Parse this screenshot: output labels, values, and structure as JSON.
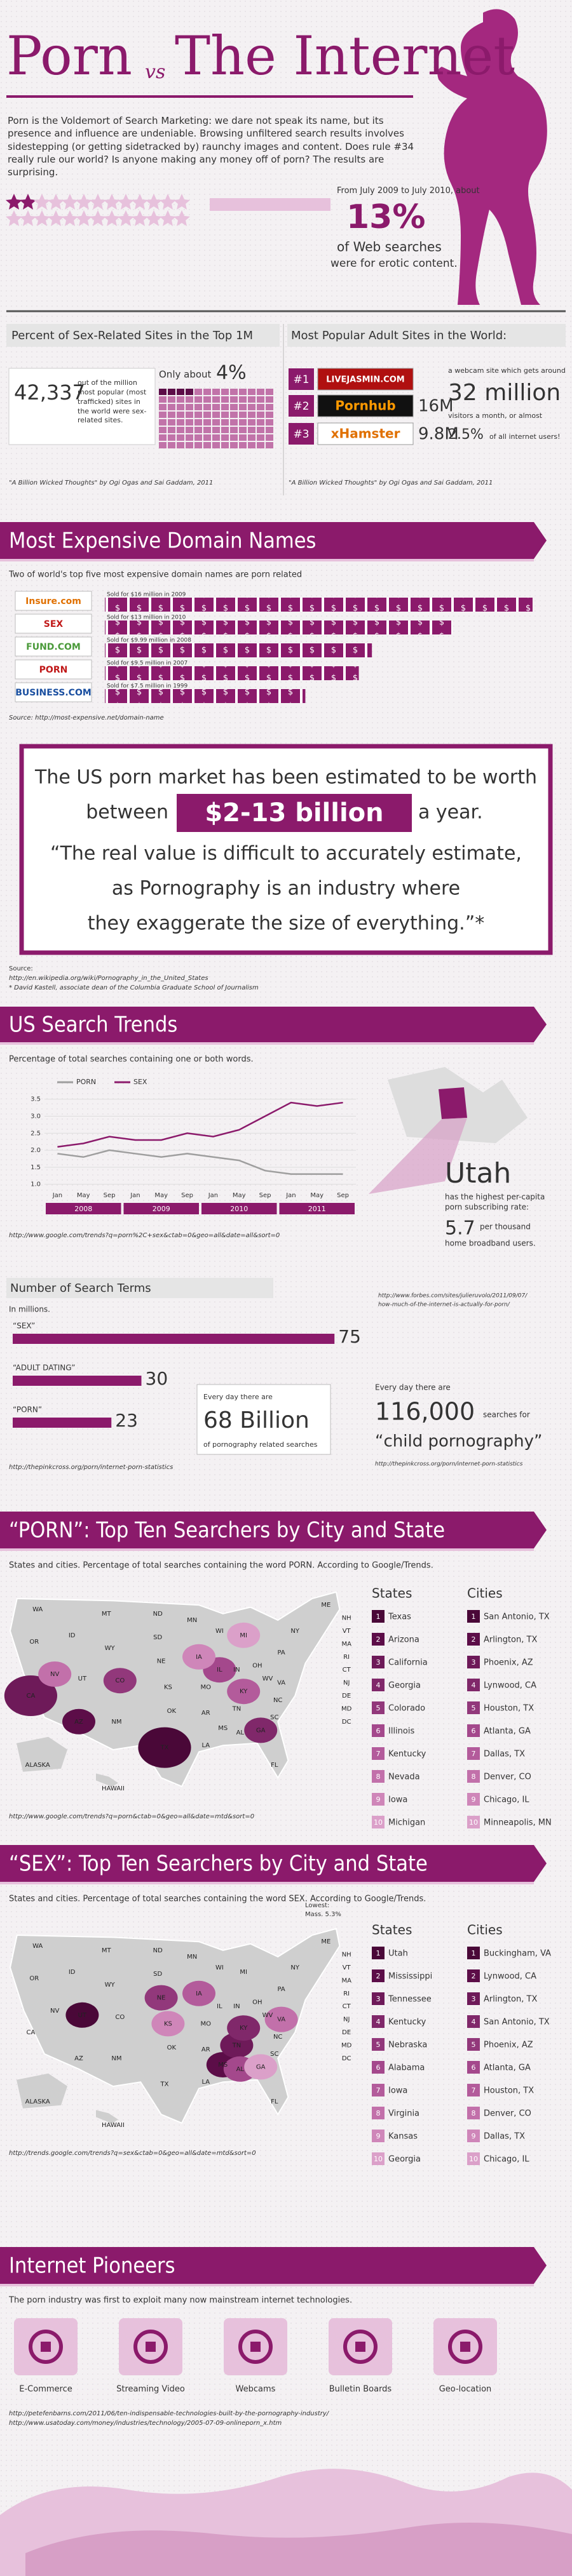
{
  "header": {
    "title_left": "Porn",
    "title_vs": "vs",
    "title_right": "The Internet"
  },
  "intro": {
    "text": "Porn is the Voldemort of Search Marketing: we dare not speak its name, but its presence and influence are undeniable. Browsing unfiltered search results involves sidestepping (or getting sidetracked by) raunchy images and content. Does rule #34 really rule our world? Is anyone making any money off of porn? The results are surprising.",
    "stat_period": "From July 2009 to July 2010, about",
    "stat_value": "13%",
    "stat_caption_1": "of Web searches",
    "stat_caption_2": "were for erotic content."
  },
  "top1m": {
    "heading": "Percent of Sex-Related Sites in the Top 1M",
    "count": "42,337",
    "count_caption": "out of the million most popular (most trafficked) sites in the world were sex-related sites.",
    "share_prefix": "Only about",
    "share": "4%",
    "source": "\"A Billion Wicked Thoughts\" by Ogi Ogas and Sai Gaddam, 2011"
  },
  "adult_sites": {
    "heading": "Most Popular Adult Sites in the World:",
    "sites": [
      {
        "rank": "#1",
        "name": "LIVEJASMIN.COM"
      },
      {
        "rank": "#2",
        "name": "Pornhub",
        "visitors": "16M"
      },
      {
        "rank": "#3",
        "name": "xHamster",
        "visitors": "9.8M"
      }
    ],
    "note_1": "a webcam site which gets around",
    "big": "32 million",
    "note_2": "visitors a month, or almost",
    "share": "2.5%",
    "note_3": "of all internet users!",
    "source": "\"A Billion Wicked Thoughts\" by Ogi Ogas and Sai Gaddam, 2011"
  },
  "domains": {
    "heading": "Most Expensive Domain Names",
    "subtitle": "Two of world's top five most expensive domain names are porn related",
    "sale_notes": [
      "Sold for $16 million in 2009",
      "Sold for $13 million in 2010",
      "Sold for $9.99 million in 2008",
      "Sold for $9.5 million in 2007",
      "Sold for $7.5 million in 1999"
    ],
    "source": "Source: http://most-expensive.net/domain-name"
  },
  "market": {
    "line_1": "The US porn market has been estimated to be worth",
    "line_2a": "between",
    "amount": "$2-13 billion",
    "line_2b": "a year.",
    "quote_1": "“The real value is difficult to accurately estimate,",
    "quote_2": "as Pornography is an industry where",
    "quote_3": "they exaggerate the size of everything.”*",
    "source_label": "Source:",
    "source_url": "http://en.wikipedia.org/wiki/Pornography_in_the_United_States",
    "source_note": "* David Kastell, associate dean of the Columbia Graduate School of Journalism"
  },
  "trends": {
    "heading": "US Search Trends",
    "subtitle": "Percentage of total searches containing one or both words.",
    "source": "http://www.google.com/trends?q=porn%2C+sex&ctab=0&geo=all&date=all&sort=0",
    "utah": {
      "name": "Utah",
      "text_1": "has the highest per-capita",
      "text_2": "porn subscribing rate:",
      "rate": "5.7",
      "text_3": "per thousand",
      "text_4": "home broadband users.",
      "source_1": "http://www.forbes.com/sites/julieruvolo/2011/09/07/",
      "source_2": "how-much-of-the-internet-is-actually-for-porn/"
    }
  },
  "search_terms": {
    "heading": "Number of Search Terms",
    "unit": "In millions.",
    "source": "http://thepinkcross.org/porn/internet-porn-statistics",
    "daily": {
      "prefix": "Every day there are",
      "value": "68 Billion",
      "suffix": "of pornography related searches"
    },
    "child": {
      "prefix": "Every day there are",
      "value": "116,000",
      "suffix": "searches for",
      "term": "“child pornography”",
      "source": "http://thepinkcross.org/porn/internet-porn-statistics"
    }
  },
  "porn_top10": {
    "heading": "“PORN”: Top Ten Searchers by City and State",
    "subtitle": "States and cities. Percentage of total searches containing the word PORN. According to Google/Trends.",
    "states_heading": "States",
    "cities_heading": "Cities",
    "states": [
      {
        "rank": 1,
        "name": "Texas"
      },
      {
        "rank": 2,
        "name": "Arizona"
      },
      {
        "rank": 3,
        "name": "California"
      },
      {
        "rank": 4,
        "name": "Georgia"
      },
      {
        "rank": 5,
        "name": "Colorado"
      },
      {
        "rank": 6,
        "name": "Illinois"
      },
      {
        "rank": 7,
        "name": "Kentucky"
      },
      {
        "rank": 8,
        "name": "Nevada"
      },
      {
        "rank": 9,
        "name": "Iowa"
      },
      {
        "rank": 10,
        "name": "Michigan"
      }
    ],
    "cities": [
      {
        "rank": 1,
        "name": "San Antonio, TX"
      },
      {
        "rank": 2,
        "name": "Arlington, TX"
      },
      {
        "rank": 3,
        "name": "Phoenix, AZ"
      },
      {
        "rank": 4,
        "name": "Lynwood, CA"
      },
      {
        "rank": 5,
        "name": "Houston, TX"
      },
      {
        "rank": 6,
        "name": "Atlanta, GA"
      },
      {
        "rank": 7,
        "name": "Dallas, TX"
      },
      {
        "rank": 8,
        "name": "Denver, CO"
      },
      {
        "rank": 9,
        "name": "Chicago, IL"
      },
      {
        "rank": 10,
        "name": "Minneapolis, MN"
      }
    ],
    "map_labels": [
      "WA",
      "OR",
      "CA",
      "NV",
      "ID",
      "MT",
      "WY",
      "UT",
      "AZ",
      "CO",
      "NM",
      "ND",
      "SD",
      "NE",
      "KS",
      "OK",
      "TX",
      "MN",
      "IA",
      "MO",
      "AR",
      "LA",
      "WI",
      "IL",
      "MS",
      "MI",
      "IN",
      "KY",
      "TN",
      "AL",
      "OH",
      "GA",
      "FL",
      "SC",
      "NC",
      "VA",
      "WV",
      "PA",
      "NY",
      "ME",
      "NH",
      "VT",
      "MA",
      "RI",
      "CT",
      "NJ",
      "DE",
      "MD",
      "DC",
      "ALASKA",
      "HAWAII"
    ],
    "source": "http://www.google.com/trends?q=porn&ctab=0&geo=all&date=mtd&sort=0"
  },
  "sex_top10": {
    "heading": "“SEX”: Top Ten Searchers by City and State",
    "subtitle": "States and cities. Percentage of total searches containing the word SEX. According to Google/Trends.",
    "states_heading": "States",
    "cities_heading": "Cities",
    "lowest_label": "Lowest:",
    "lowest_value": "Mass. 5.3%",
    "states": [
      {
        "rank": 1,
        "name": "Utah"
      },
      {
        "rank": 2,
        "name": "Mississippi"
      },
      {
        "rank": 3,
        "name": "Tennessee"
      },
      {
        "rank": 4,
        "name": "Kentucky"
      },
      {
        "rank": 5,
        "name": "Nebraska"
      },
      {
        "rank": 6,
        "name": "Alabama"
      },
      {
        "rank": 7,
        "name": "Iowa"
      },
      {
        "rank": 8,
        "name": "Virginia"
      },
      {
        "rank": 9,
        "name": "Kansas"
      },
      {
        "rank": 10,
        "name": "Georgia"
      }
    ],
    "cities": [
      {
        "rank": 1,
        "name": "Buckingham, VA"
      },
      {
        "rank": 2,
        "name": "Lynwood, CA"
      },
      {
        "rank": 3,
        "name": "Arlington, TX"
      },
      {
        "rank": 4,
        "name": "San Antonio, TX"
      },
      {
        "rank": 5,
        "name": "Phoenix, AZ"
      },
      {
        "rank": 6,
        "name": "Atlanta, GA"
      },
      {
        "rank": 7,
        "name": "Houston, TX"
      },
      {
        "rank": 8,
        "name": "Denver, CO"
      },
      {
        "rank": 9,
        "name": "Dallas, TX"
      },
      {
        "rank": 10,
        "name": "Chicago, IL"
      }
    ],
    "map_labels": [
      "WA",
      "OR",
      "CA",
      "NV",
      "ID",
      "MT",
      "WY",
      "UT",
      "AZ",
      "CO",
      "NM",
      "ND",
      "SD",
      "NE",
      "KS",
      "OK",
      "TX",
      "MN",
      "IA",
      "MO",
      "AR",
      "LA",
      "WI",
      "IL",
      "MS",
      "MI",
      "IN",
      "KY",
      "TN",
      "AL",
      "OH",
      "GA",
      "FL",
      "SC",
      "NC",
      "VA",
      "WV",
      "PA",
      "NY",
      "ME",
      "NH",
      "VT",
      "MA",
      "RI",
      "CT",
      "NJ",
      "DE",
      "MD",
      "DC",
      "ALASKA",
      "HAWAII"
    ],
    "source": "http://trends.google.com/trends?q=sex&ctab=0&geo=all&date=mtd&sort=0"
  },
  "pioneers": {
    "heading": "Internet Pioneers",
    "subtitle": "The porn industry was first to exploit many now mainstream internet technologies.",
    "items": [
      "E-Commerce",
      "Streaming Video",
      "Webcams",
      "Bulletin Boards",
      "Geo-location"
    ],
    "sources": [
      "http://petefenbarns.com/2011/06/ten-indispensable-technologies-built-by-the-pornography-industry/",
      "http://www.usatoday.com/money/industries/technology/2005-07-09-onlineporn_x.htm"
    ]
  },
  "chart_data": [
    {
      "type": "line",
      "categories": [
        "Jan",
        "May",
        "Sep",
        "Jan",
        "May",
        "Sep",
        "Jan",
        "May",
        "Sep",
        "Jan",
        "May",
        "Sep"
      ],
      "x_groups": [
        "2008",
        "2009",
        "2010",
        "2011"
      ],
      "series": [
        {
          "name": "PORN",
          "color": "#9e9e9e",
          "values": [
            1.9,
            1.8,
            2.0,
            1.9,
            1.8,
            1.9,
            1.8,
            1.7,
            1.4,
            1.3,
            1.3,
            1.3
          ]
        },
        {
          "name": "SEX",
          "color": "#8b1a6b",
          "values": [
            2.1,
            2.2,
            2.4,
            2.3,
            2.3,
            2.5,
            2.4,
            2.6,
            3.0,
            3.4,
            3.3,
            3.4
          ]
        }
      ],
      "ylim": [
        0.9,
        3.7
      ],
      "yticks": [
        {
          "value": 1,
          "label": "1.0"
        },
        1.5,
        {
          "value": 2,
          "label": "2.0"
        },
        2.5,
        {
          "value": 3,
          "label": "3.0"
        },
        3.5
      ],
      "grid": true
    },
    {
      "type": "hbar",
      "categories": [
        "“SEX”",
        "“ADULT DATING”",
        "“PORN”"
      ],
      "values": [
        75,
        30,
        23
      ],
      "color": "#8b1a6b",
      "xlim": [
        0,
        80
      ]
    },
    {
      "type": "dollar-bar",
      "categories": [
        "Insure.com",
        "SEX",
        "FUND.COM",
        "PORN",
        "BUSINESS.COM"
      ],
      "values": [
        16,
        13,
        9.99,
        9.5,
        7.5
      ],
      "color": "#8b1a6b",
      "xlim": [
        0,
        17
      ]
    }
  ]
}
